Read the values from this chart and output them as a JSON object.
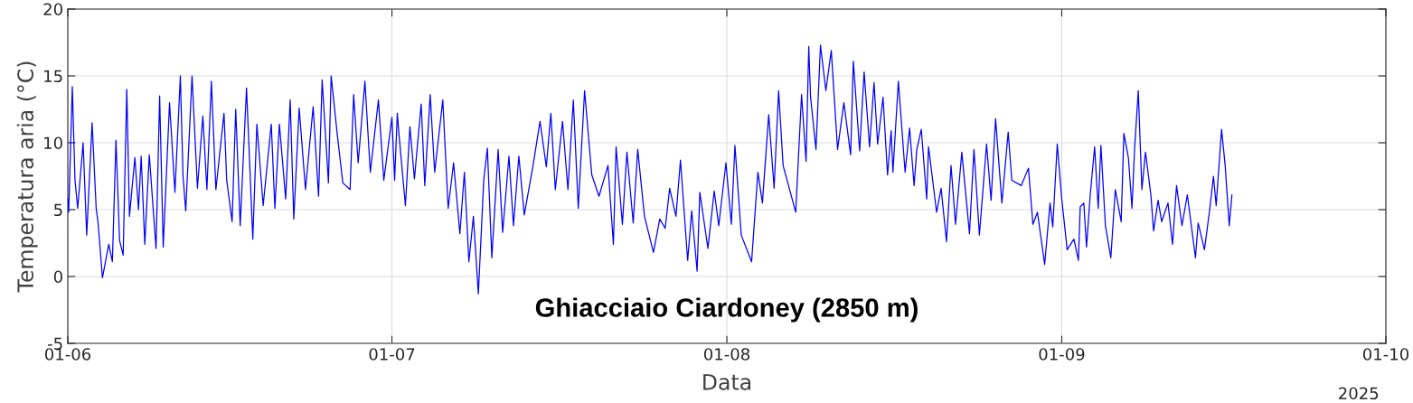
{
  "chart_data": {
    "type": "line",
    "title": "Ghiacciaio Ciardoney (2850 m)",
    "xlabel": "Data",
    "ylabel": "Temperatura aria (°C)",
    "annotations": [
      "2025"
    ],
    "xlim": [
      "2025-06-01",
      "2025-10-01"
    ],
    "xticks": [
      {
        "value": "2025-06-01",
        "label": "01-06"
      },
      {
        "value": "2025-07-01",
        "label": "01-07"
      },
      {
        "value": "2025-08-01",
        "label": "01-08"
      },
      {
        "value": "2025-09-01",
        "label": "01-09"
      },
      {
        "value": "2025-10-01",
        "label": "01-10"
      }
    ],
    "ylim": [
      -5,
      20
    ],
    "yticks": [
      -5,
      0,
      5,
      10,
      15,
      20
    ],
    "grid": true,
    "line_style": "solid",
    "marker": "none",
    "series": [
      {
        "color": "#0000ff",
        "x": [
          "2025-06-01T00:00",
          "2025-06-01T02:00",
          "2025-06-01T10:00",
          "2025-06-01T16:00",
          "2025-06-01T22:00",
          "2025-06-02T10:00",
          "2025-06-02T18:00",
          "2025-06-03T06:00",
          "2025-06-03T15:00",
          "2025-06-03T19:00",
          "2025-06-04T05:00",
          "2025-06-04T19:00",
          "2025-06-05T03:00",
          "2025-06-05T11:00",
          "2025-06-05T19:00",
          "2025-06-06T03:00",
          "2025-06-06T11:00",
          "2025-06-06T17:00",
          "2025-06-07T05:00",
          "2025-06-07T13:00",
          "2025-06-07T19:00",
          "2025-06-08T03:00",
          "2025-06-08T13:00",
          "2025-06-09T04:00",
          "2025-06-09T12:00",
          "2025-06-09T20:00",
          "2025-06-10T10:00",
          "2025-06-10T22:00",
          "2025-06-11T10:00",
          "2025-06-11T16:00",
          "2025-06-11T22:00",
          "2025-06-12T12:00",
          "2025-06-13T00:00",
          "2025-06-13T12:00",
          "2025-06-13T21:00",
          "2025-06-14T07:00",
          "2025-06-14T17:00",
          "2025-06-15T11:00",
          "2025-06-15T17:00",
          "2025-06-16T05:00",
          "2025-06-16T13:00",
          "2025-06-16T23:00",
          "2025-06-17T13:00",
          "2025-06-18T03:00",
          "2025-06-18T12:00",
          "2025-06-19T02:00",
          "2025-06-19T20:00",
          "2025-06-20T04:00",
          "2025-06-20T14:00",
          "2025-06-21T04:00",
          "2025-06-21T14:00",
          "2025-06-21T22:00",
          "2025-06-22T10:00",
          "2025-06-23T00:00",
          "2025-06-23T17:00",
          "2025-06-24T05:00",
          "2025-06-24T13:00",
          "2025-06-25T03:00",
          "2025-06-25T09:00",
          "2025-06-25T23:00",
          "2025-06-26T11:00",
          "2025-06-27T03:00",
          "2025-06-27T11:00",
          "2025-06-27T21:00",
          "2025-06-28T12:00",
          "2025-06-29T00:00",
          "2025-06-29T18:00",
          "2025-06-30T06:00",
          "2025-07-01T00:00",
          "2025-07-01T06:00",
          "2025-07-01T12:00",
          "2025-07-01T16:00",
          "2025-07-02T06:00",
          "2025-07-02T16:00",
          "2025-07-03T02:00",
          "2025-07-03T17:00",
          "2025-07-04T01:00",
          "2025-07-04T13:00",
          "2025-07-04T23:00",
          "2025-07-05T17:00",
          "2025-07-06T05:00",
          "2025-07-06T17:00",
          "2025-07-07T07:00",
          "2025-07-07T17:00",
          "2025-07-08T03:00",
          "2025-07-08T13:00",
          "2025-07-09T00:00",
          "2025-07-09T12:00",
          "2025-07-09T20:00",
          "2025-07-10T06:00",
          "2025-07-10T20:00",
          "2025-07-11T06:00",
          "2025-07-11T20:00",
          "2025-07-12T06:00",
          "2025-07-12T18:00",
          "2025-07-13T06:00",
          "2025-07-14T01:00",
          "2025-07-14T17:00",
          "2025-07-15T07:00",
          "2025-07-15T17:00",
          "2025-07-16T03:00",
          "2025-07-16T19:00",
          "2025-07-17T07:00",
          "2025-07-17T19:00",
          "2025-07-18T06:00",
          "2025-07-18T20:00",
          "2025-07-19T12:00",
          "2025-07-20T04:00",
          "2025-07-21T00:00",
          "2025-07-21T12:00",
          "2025-07-21T18:00",
          "2025-07-22T08:00",
          "2025-07-22T18:00",
          "2025-07-23T08:00",
          "2025-07-23T18:00",
          "2025-07-24T09:00",
          "2025-07-25T05:00",
          "2025-07-25T19:00",
          "2025-07-26T07:00",
          "2025-07-26T17:00",
          "2025-07-27T07:00",
          "2025-07-27T17:00",
          "2025-07-28T09:00",
          "2025-07-28T18:00",
          "2025-07-29T06:00",
          "2025-07-29T12:00",
          "2025-07-30T06:00",
          "2025-07-30T20:00",
          "2025-07-31T06:00",
          "2025-07-31T22:00",
          "2025-08-01T10:00",
          "2025-08-01T18:00",
          "2025-08-02T08:00",
          "2025-08-03T07:00",
          "2025-08-03T21:00",
          "2025-08-04T07:00",
          "2025-08-04T21:00",
          "2025-08-05T09:00",
          "2025-08-05T19:00",
          "2025-08-06T05:00",
          "2025-08-07T09:00",
          "2025-08-07T22:00",
          "2025-08-08T08:00",
          "2025-08-08T14:00",
          "2025-08-08T18:00",
          "2025-08-09T06:00",
          "2025-08-09T16:00",
          "2025-08-10T04:00",
          "2025-08-10T16:00",
          "2025-08-11T06:00",
          "2025-08-11T20:00",
          "2025-08-12T11:00",
          "2025-08-12T17:00",
          "2025-08-13T07:00",
          "2025-08-13T17:00",
          "2025-08-14T05:00",
          "2025-08-14T15:00",
          "2025-08-14T23:00",
          "2025-08-15T11:00",
          "2025-08-15T21:00",
          "2025-08-16T05:00",
          "2025-08-16T09:00",
          "2025-08-16T21:00",
          "2025-08-17T12:00",
          "2025-08-17T22:00",
          "2025-08-18T08:00",
          "2025-08-18T14:00",
          "2025-08-19T00:00",
          "2025-08-19T12:00",
          "2025-08-19T16:00",
          "2025-08-20T10:00",
          "2025-08-20T20:00",
          "2025-08-21T08:00",
          "2025-08-21T18:00",
          "2025-08-22T04:00",
          "2025-08-22T18:00",
          "2025-08-23T11:00",
          "2025-08-23T21:00",
          "2025-08-24T09:00",
          "2025-08-25T01:00",
          "2025-08-25T11:00",
          "2025-08-25T21:00",
          "2025-08-26T11:00",
          "2025-08-27T01:00",
          "2025-08-27T09:00",
          "2025-08-28T06:00",
          "2025-08-28T22:00",
          "2025-08-29T08:00",
          "2025-08-29T18:00",
          "2025-08-30T10:00",
          "2025-08-30T22:00",
          "2025-08-31T04:00",
          "2025-08-31T14:00",
          "2025-09-01T00:00",
          "2025-09-01T12:00",
          "2025-09-02T03:00",
          "2025-09-02T13:00",
          "2025-09-02T17:00",
          "2025-09-03T01:00",
          "2025-09-03T07:00",
          "2025-09-03T15:00",
          "2025-09-04T01:00",
          "2025-09-04T09:00",
          "2025-09-04T15:00",
          "2025-09-05T01:00",
          "2025-09-05T13:00",
          "2025-09-05T23:00",
          "2025-09-06T12:00",
          "2025-09-06T18:00",
          "2025-09-07T04:00",
          "2025-09-07T12:00",
          "2025-09-07T18:00",
          "2025-09-08T02:00",
          "2025-09-08T10:00",
          "2025-09-08T18:00",
          "2025-09-09T06:00",
          "2025-09-09T12:00",
          "2025-09-09T22:00",
          "2025-09-10T06:00",
          "2025-09-10T20:00",
          "2025-09-11T06:00",
          "2025-09-11T15:00",
          "2025-09-12T03:00",
          "2025-09-12T15:00",
          "2025-09-13T09:00",
          "2025-09-13T15:00",
          "2025-09-14T05:00",
          "2025-09-14T17:00",
          "2025-09-15T01:00",
          "2025-09-15T07:00",
          "2025-09-15T19:00",
          "2025-09-16T03:00",
          "2025-09-16T12:00",
          "2025-09-16T18:00"
        ],
        "values": [
          5.8,
          4.8,
          14.2,
          7.2,
          5.1,
          10.0,
          3.1,
          11.5,
          5.1,
          4.1,
          -0.1,
          2.4,
          1.1,
          10.2,
          2.7,
          1.6,
          14.0,
          4.5,
          8.9,
          5.0,
          9.0,
          2.4,
          9.1,
          2.1,
          13.5,
          2.2,
          13.0,
          6.3,
          15.0,
          7.5,
          4.9,
          15.0,
          6.6,
          12.0,
          6.5,
          14.6,
          6.5,
          12.2,
          7.2,
          4.1,
          12.5,
          3.8,
          14.1,
          2.8,
          11.4,
          5.3,
          11.4,
          5.1,
          11.4,
          5.8,
          13.2,
          4.3,
          12.6,
          6.5,
          12.7,
          6.0,
          14.7,
          7.0,
          15.0,
          10.5,
          7.0,
          6.5,
          13.6,
          8.5,
          14.6,
          7.8,
          13.2,
          7.2,
          11.9,
          7.2,
          12.2,
          10.5,
          5.3,
          11.2,
          7.3,
          12.9,
          6.8,
          13.6,
          7.8,
          13.2,
          5.1,
          8.5,
          3.2,
          7.8,
          1.1,
          4.5,
          -1.3,
          7.2,
          9.6,
          1.4,
          9.5,
          3.3,
          9.0,
          3.8,
          9.0,
          4.6,
          8.2,
          11.6,
          8.2,
          12.2,
          6.5,
          11.6,
          6.5,
          13.2,
          5.1,
          13.9,
          7.6,
          6.0,
          8.3,
          2.4,
          9.7,
          3.9,
          9.3,
          4.0,
          9.5,
          4.5,
          1.8,
          4.3,
          3.6,
          6.6,
          4.5,
          8.7,
          1.2,
          4.9,
          0.4,
          6.3,
          2.1,
          6.4,
          3.8,
          8.5,
          3.9,
          9.8,
          3.1,
          1.1,
          7.8,
          5.5,
          12.1,
          6.6,
          13.9,
          8.3,
          4.8,
          13.6,
          8.6,
          17.2,
          13.4,
          9.5,
          17.3,
          13.9,
          16.9,
          9.5,
          13.0,
          9.1,
          16.1,
          9.4,
          15.3,
          9.7,
          14.5,
          9.9,
          13.4,
          7.6,
          10.9,
          7.8,
          14.6,
          7.8,
          11.1,
          6.8,
          9.5,
          11.0,
          5.8,
          9.7,
          4.8,
          6.6,
          2.6,
          8.3,
          3.9,
          9.3,
          3.2,
          9.5,
          3.1,
          9.9,
          5.7,
          11.8,
          5.5,
          10.8,
          7.2,
          6.8,
          8.1,
          3.9,
          4.8,
          0.9,
          5.5,
          3.7,
          9.9,
          5.8,
          2.0,
          2.8,
          1.2,
          5.2,
          5.5,
          2.2,
          6.0,
          9.7,
          5.1,
          9.8,
          3.8,
          1.4,
          6.5,
          4.1,
          10.7,
          8.9,
          5.1,
          9.7,
          13.9,
          6.5,
          9.3,
          6.1,
          3.4,
          5.7,
          4.1,
          5.5,
          2.4,
          6.8,
          3.8,
          6.1,
          1.4,
          4.0,
          2.0,
          5.1,
          7.5,
          5.3,
          11.0,
          8.3,
          3.8,
          6.1
        ]
      }
    ]
  }
}
